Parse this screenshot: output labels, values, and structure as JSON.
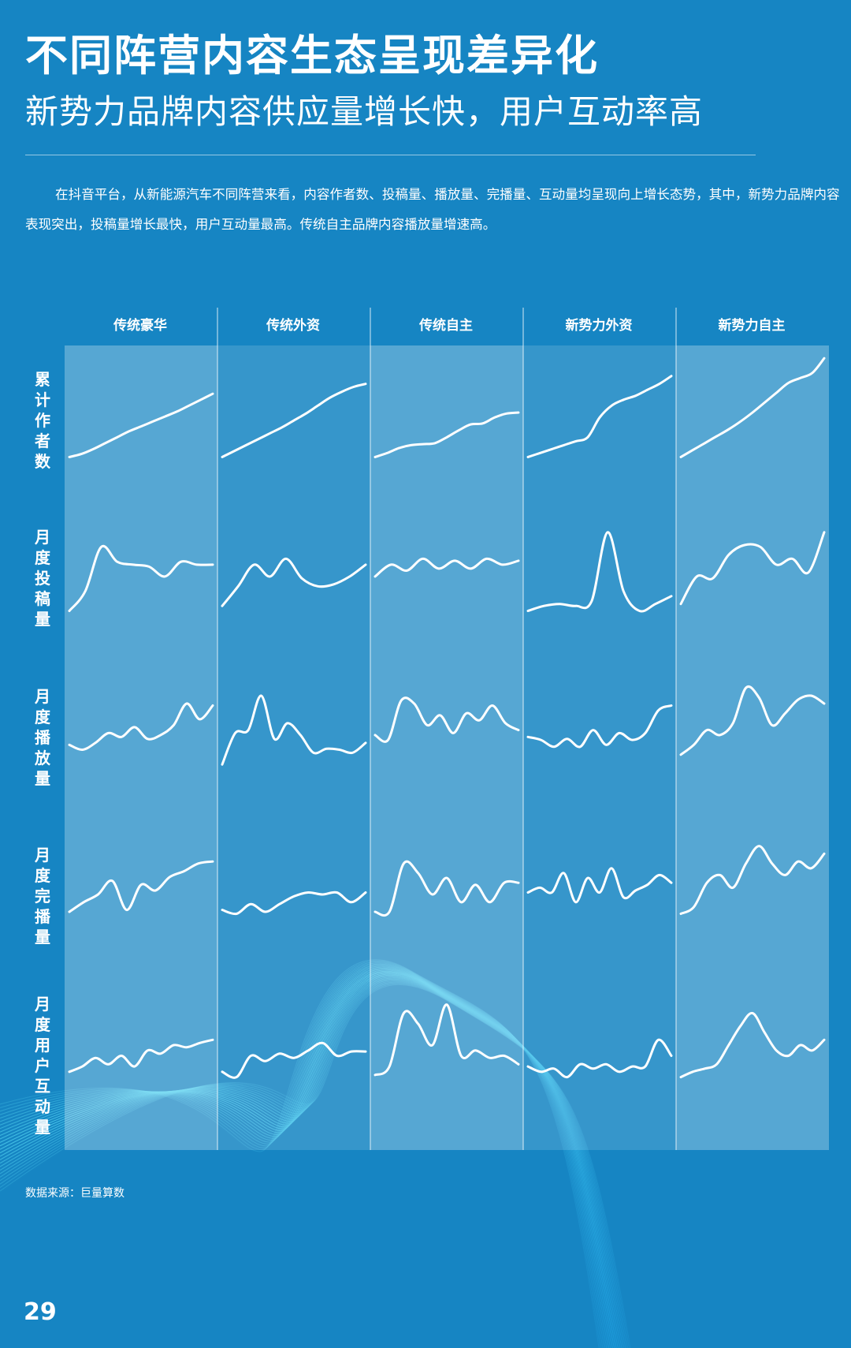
{
  "title": "不同阵营内容生态呈现差异化",
  "subtitle": "新势力品牌内容供应量增长快，用户互动率高",
  "paragraph": "在抖音平台，从新能源汽车不同阵营来看，内容作者数、投稿量、播放量、完播量、互动量均呈现向上增长态势，其中，新势力品牌内容表现突出，投稿量增长最快，用户互动量最高。传统自主品牌内容播放量增速高。",
  "source": "数据来源：巨量算数",
  "page_number": "29",
  "colors": {
    "background": "#1685c3",
    "panel_light": "rgba(255,255,255,0.28)",
    "panel_dark": "rgba(255,255,255,0.14)",
    "line": "#ffffff"
  },
  "chart_data": {
    "type": "line",
    "columns": [
      "传统豪华",
      "传统外资",
      "传统自主",
      "新势力外资",
      "新势力自主"
    ],
    "rows": [
      "累计作者数",
      "月度投稿量",
      "月度播放量",
      "月度完播量",
      "月度用户互动量"
    ],
    "y_range": [
      0,
      100
    ],
    "series": [
      [
        [
          0,
          3,
          8,
          14,
          20,
          26,
          31,
          36,
          41,
          46,
          52,
          58,
          64
        ],
        [
          0,
          6,
          12,
          18,
          24,
          30,
          37,
          44,
          52,
          60,
          66,
          71,
          74
        ],
        [
          0,
          4,
          9,
          12,
          13,
          14,
          20,
          27,
          33,
          34,
          40,
          44,
          45
        ],
        [
          0,
          4,
          8,
          12,
          16,
          20,
          40,
          52,
          58,
          62,
          68,
          74,
          82
        ],
        [
          0,
          7,
          14,
          21,
          28,
          36,
          45,
          55,
          65,
          75,
          80,
          85,
          100
        ]
      ],
      [
        [
          5,
          25,
          70,
          55,
          52,
          50,
          40,
          55,
          52,
          52
        ],
        [
          10,
          30,
          52,
          40,
          58,
          38,
          30,
          32,
          40,
          52
        ],
        [
          40,
          52,
          46,
          58,
          48,
          56,
          48,
          58,
          52,
          56
        ],
        [
          5,
          10,
          12,
          10,
          15,
          85,
          25,
          5,
          12,
          20
        ],
        [
          12,
          40,
          38,
          62,
          72,
          70,
          52,
          58,
          44,
          85
        ]
      ],
      [
        [
          30,
          25,
          32,
          42,
          38,
          48,
          36,
          40,
          50,
          72,
          56,
          70
        ],
        [
          10,
          42,
          45,
          80,
          36,
          52,
          40,
          22,
          26,
          25,
          22,
          32
        ],
        [
          40,
          35,
          75,
          72,
          50,
          60,
          42,
          62,
          55,
          70,
          52,
          45
        ],
        [
          38,
          35,
          28,
          36,
          28,
          45,
          30,
          42,
          35,
          42,
          65,
          70
        ],
        [
          20,
          30,
          45,
          40,
          52,
          88,
          78,
          50,
          62,
          76,
          80,
          72
        ]
      ],
      [
        [
          20,
          30,
          38,
          52,
          22,
          48,
          42,
          56,
          62,
          70,
          72
        ],
        [
          22,
          18,
          28,
          20,
          28,
          36,
          40,
          38,
          40,
          30,
          40
        ],
        [
          20,
          20,
          70,
          60,
          38,
          55,
          30,
          48,
          30,
          50,
          50
        ],
        [
          40,
          45,
          40,
          60,
          30,
          55,
          40,
          65,
          35,
          42,
          48,
          58,
          50
        ],
        [
          18,
          25,
          50,
          58,
          45,
          70,
          88,
          70,
          58,
          72,
          65,
          80
        ]
      ],
      [
        [
          25,
          30,
          38,
          32,
          40,
          30,
          45,
          42,
          50,
          48,
          52,
          55
        ],
        [
          25,
          20,
          40,
          35,
          42,
          38,
          45,
          52,
          40,
          44,
          44
        ],
        [
          22,
          30,
          80,
          70,
          50,
          88,
          40,
          45,
          38,
          40,
          32
        ],
        [
          30,
          25,
          28,
          20,
          32,
          28,
          32,
          25,
          30,
          30,
          55,
          40
        ],
        [
          20,
          25,
          28,
          32,
          50,
          68,
          80,
          62,
          45,
          40,
          50,
          45,
          55
        ]
      ]
    ]
  }
}
